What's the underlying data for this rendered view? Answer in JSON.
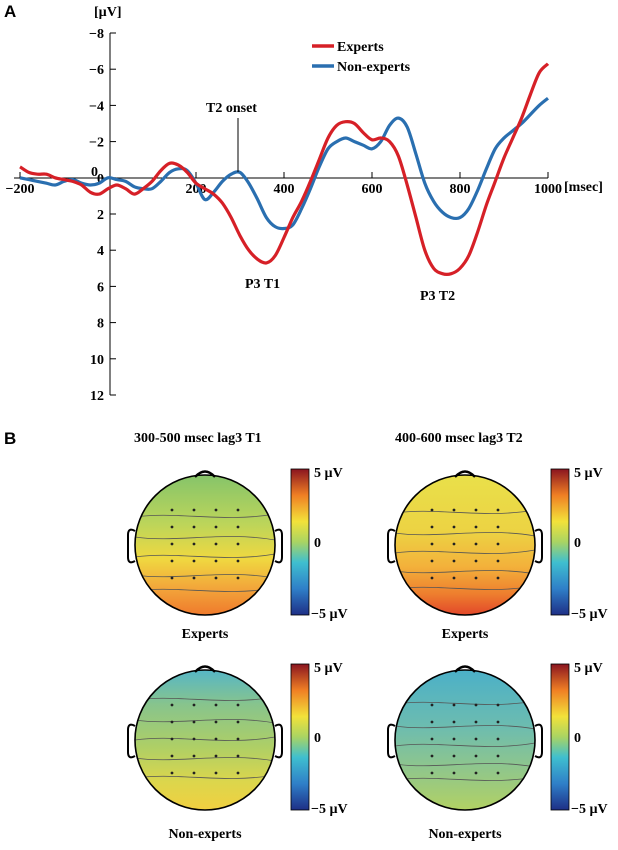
{
  "panel_a": {
    "label": "A",
    "annotations": {
      "t2_onset": "T2 onset",
      "p3_t1": "P3 T1",
      "p3_t2": "P3 T2"
    }
  },
  "panel_b": {
    "label": "B",
    "columns": [
      {
        "title": "300-500 msec lag3 T1"
      },
      {
        "title": "400-600 msec lag3 T2"
      }
    ],
    "maps": [
      {
        "group": "Experts",
        "window": "300-500 msec lag3 T1"
      },
      {
        "group": "Experts",
        "window": "400-600 msec lag3 T2"
      },
      {
        "group": "Non-experts",
        "window": "300-500 msec lag3 T1"
      },
      {
        "group": "Non-experts",
        "window": "400-600 msec lag3 T2"
      }
    ],
    "colorbar": {
      "max_label": "5 µV",
      "mid_label": "0",
      "min_label": "−5 µV"
    }
  },
  "colors": {
    "experts": "#d62027",
    "non_experts": "#2a6fb0"
  },
  "chart_data": {
    "type": "line",
    "title": "",
    "xlabel": "[msec]",
    "ylabel": "[µV]",
    "xlim": [
      -200,
      1000
    ],
    "ylim": [
      12,
      -8
    ],
    "y_inverted": true,
    "x_ticks": [
      -200,
      200,
      400,
      600,
      800,
      1000
    ],
    "x_tick_labels": [
      "−200",
      "200",
      "400",
      "600",
      "800",
      "1000"
    ],
    "y_ticks": [
      -8,
      -6,
      -4,
      -2,
      0,
      2,
      4,
      6,
      8,
      10,
      12
    ],
    "y_tick_labels": [
      "−8",
      "−6",
      "−4",
      "−2",
      "0",
      "2",
      "4",
      "6",
      "8",
      "10",
      "12"
    ],
    "legend": [
      "Experts",
      "Non-experts"
    ],
    "legend_position": "top-right",
    "vline_at": 300,
    "series": [
      {
        "name": "Experts",
        "x": [
          -200,
          -180,
          -160,
          -140,
          -120,
          -100,
          -80,
          -60,
          -40,
          -20,
          0,
          20,
          40,
          60,
          80,
          100,
          120,
          140,
          160,
          180,
          200,
          220,
          240,
          260,
          280,
          300,
          320,
          340,
          360,
          380,
          400,
          420,
          440,
          460,
          480,
          500,
          520,
          540,
          560,
          580,
          600,
          620,
          640,
          660,
          680,
          700,
          720,
          740,
          760,
          780,
          800,
          820,
          840,
          860,
          880,
          900,
          920,
          940,
          960,
          980,
          1000
        ],
        "values": [
          -0.6,
          -0.3,
          -0.2,
          -0.2,
          0,
          0.1,
          0.2,
          0.4,
          0.8,
          0.9,
          0.6,
          0.4,
          0.6,
          0.9,
          0.6,
          0.2,
          -0.4,
          -0.8,
          -0.7,
          -0.3,
          0.3,
          0.6,
          0.9,
          1.4,
          2.2,
          3.2,
          4,
          4.5,
          4.7,
          4.3,
          3.3,
          2.2,
          1.3,
          0.2,
          -1,
          -2.2,
          -2.9,
          -3.1,
          -3,
          -2.5,
          -2.1,
          -2.2,
          -2,
          -1.2,
          0.4,
          2.2,
          4,
          5,
          5.3,
          5.3,
          5,
          4.3,
          3,
          1.5,
          0.2,
          -1.1,
          -2.2,
          -3.3,
          -4.6,
          -5.8,
          -6.3
        ]
      },
      {
        "name": "Non-experts",
        "x": [
          -200,
          -180,
          -160,
          -140,
          -120,
          -100,
          -80,
          -60,
          -40,
          -20,
          0,
          20,
          40,
          60,
          80,
          100,
          120,
          140,
          160,
          180,
          200,
          220,
          240,
          260,
          280,
          300,
          320,
          340,
          360,
          380,
          400,
          420,
          440,
          460,
          480,
          500,
          520,
          540,
          560,
          580,
          600,
          620,
          640,
          660,
          680,
          700,
          720,
          740,
          760,
          780,
          800,
          820,
          840,
          860,
          880,
          900,
          920,
          940,
          960,
          980,
          1000
        ],
        "values": [
          0,
          0.1,
          0.2,
          0.3,
          0.4,
          0.2,
          0.1,
          0.3,
          0.4,
          0.3,
          0,
          0.1,
          0.2,
          0.5,
          0.6,
          0.6,
          0.2,
          -0.3,
          -0.5,
          -0.4,
          0.3,
          1.2,
          0.8,
          0.2,
          -0.2,
          -0.3,
          0.3,
          1.2,
          2.2,
          2.7,
          2.8,
          2.6,
          1.7,
          0.6,
          -0.6,
          -1.6,
          -2,
          -2.2,
          -2,
          -1.8,
          -1.6,
          -2,
          -2.9,
          -3.3,
          -2.8,
          -1.3,
          0.3,
          1.3,
          1.9,
          2.2,
          2.2,
          1.7,
          0.7,
          -0.5,
          -1.6,
          -2.2,
          -2.6,
          -3,
          -3.5,
          -4,
          -4.4
        ]
      }
    ]
  }
}
